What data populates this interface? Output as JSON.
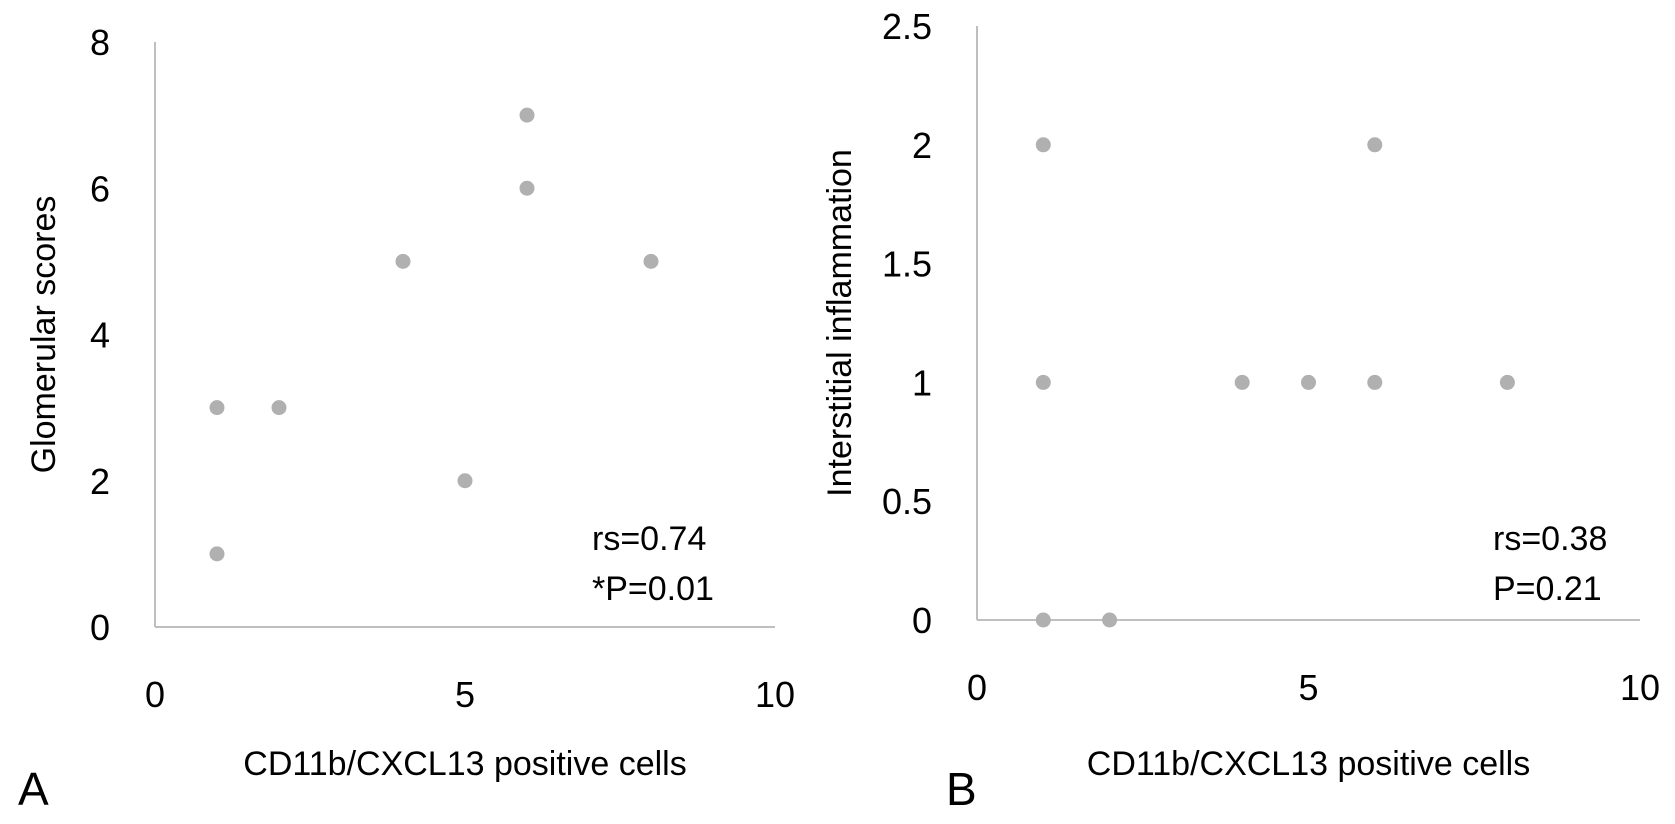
{
  "chart_data": [
    {
      "type": "scatter",
      "panel_label": "A",
      "xlabel": "CD11b/CXCL13 positive cells",
      "ylabel": "Glomerular scores",
      "xlim": [
        0,
        10
      ],
      "ylim": [
        0,
        8
      ],
      "xticks": [
        "0",
        "5",
        "10"
      ],
      "yticks": [
        "0",
        "2",
        "4",
        "6",
        "8"
      ],
      "grid": false,
      "points": [
        {
          "x": 1,
          "y": 3
        },
        {
          "x": 1,
          "y": 1
        },
        {
          "x": 2,
          "y": 3
        },
        {
          "x": 4,
          "y": 5
        },
        {
          "x": 5,
          "y": 2
        },
        {
          "x": 6,
          "y": 7
        },
        {
          "x": 6,
          "y": 6
        },
        {
          "x": 8,
          "y": 5
        }
      ],
      "annotations": [
        "rs=0.74",
        "*P=0.01"
      ],
      "point_color": "#b0b0b0",
      "axis_color": "#bfbfbf"
    },
    {
      "type": "scatter",
      "panel_label": "B",
      "xlabel": "CD11b/CXCL13 positive cells",
      "ylabel": "Interstitial inflammation",
      "xlim": [
        0,
        10
      ],
      "ylim": [
        0,
        2.5
      ],
      "xticks": [
        "0",
        "5",
        "10"
      ],
      "yticks": [
        "0",
        "0.5",
        "1",
        "1.5",
        "2",
        "2.5"
      ],
      "grid": false,
      "points": [
        {
          "x": 1,
          "y": 2
        },
        {
          "x": 1,
          "y": 1
        },
        {
          "x": 1,
          "y": 0
        },
        {
          "x": 2,
          "y": 0
        },
        {
          "x": 4,
          "y": 1
        },
        {
          "x": 5,
          "y": 1
        },
        {
          "x": 6,
          "y": 1
        },
        {
          "x": 6,
          "y": 2
        },
        {
          "x": 8,
          "y": 1
        }
      ],
      "annotations": [
        "rs=0.38",
        "P=0.21"
      ],
      "point_color": "#b0b0b0",
      "axis_color": "#bfbfbf"
    }
  ]
}
